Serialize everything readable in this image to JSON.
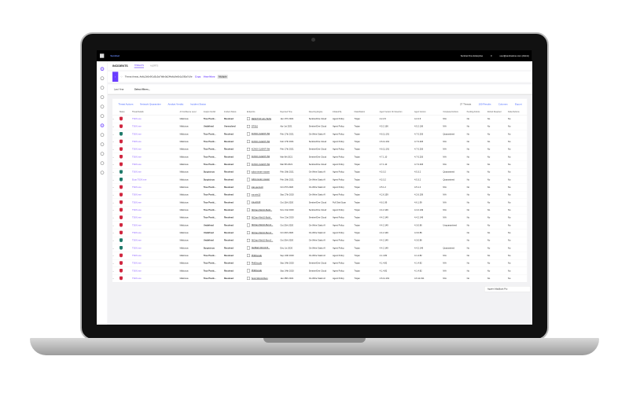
{
  "topbar": {
    "breadcrumb": "Sentinel",
    "scope": "Sentinel One Enterprise",
    "count": "0",
    "user": "user@sentinelone.com (Admin)"
  },
  "tabs": {
    "title": "INCIDENTS",
    "items": [
      "THREATS",
      "ALERTS"
    ],
    "active": "THREATS"
  },
  "banner": {
    "text": "Threat threat_4a6c2b0e9f1d3c5a7b8e0d2f4a6c8e0b1d3f5a7c9e",
    "copy": "Copy",
    "view_more": "View More",
    "tag": "Multiple"
  },
  "filters": {
    "time": "Last Year",
    "select": "Select filters..."
  },
  "actions": {
    "items": [
      "Threat Actions",
      "Network Quarantine",
      "Analyst Verdict",
      "Incident Status"
    ],
    "threat_count": "27 Threats",
    "results": "100 Results",
    "columns": "Columns",
    "export": "Export"
  },
  "colors": {
    "malicious": "#d0263f",
    "suspicious": "#1f7a6a",
    "accent": "#6a3dff"
  },
  "table": {
    "headers": [
      "",
      "Status",
      "Threat Details",
      "AI Confidence Level",
      "Analyst Verdict",
      "Incident Status",
      "Endpoints",
      "Reported Time",
      "Detecting Engine",
      "Initiated By",
      "Classification",
      "Agent Version On Detection",
      "Agent Version",
      "Completed Actions",
      "Pending Actions",
      "Reboot Required",
      "Failed Actions"
    ],
    "rows": [
      [
        "m",
        "TS0X.exe",
        "Malicious",
        "True Positi...",
        "Resolved",
        "DESKTOP-A1U7E7E",
        "Jan 17th 2021",
        "SentinelOne Cloud",
        "Agent Policy",
        "Trojan",
        "4.2.2.6",
        "4.2.2.6",
        "N/A",
        "No",
        "No",
        "No"
      ],
      [
        "m",
        "TS0X.exe",
        "Malicious",
        "Undefined",
        "Unresolved",
        "DTS10",
        "Apr 1st 2021",
        "SentinelOne Cloud",
        "Agent Policy",
        "Trojan",
        "4.5.2.136",
        "4.5.2.136",
        "N/A",
        "No",
        "No",
        "No"
      ],
      [
        "s",
        "TS0X.exe",
        "Malicious",
        "True Positi...",
        "Resolved",
        "KCWO-CLIENT-3W",
        "Feb 17th 2021",
        "On-Write Static AI",
        "Agent Policy",
        "Trojan",
        "4.6.11.191",
        "4.7.0.203",
        "Quarantined",
        "No",
        "No",
        "No"
      ],
      [
        "m",
        "TS0X.exe",
        "Malicious",
        "True Positi...",
        "Resolved",
        "KCWO-CLIENT-3W",
        "Feb 17th 2021",
        "SentinelOne Cloud",
        "Agent Policy",
        "Trojan",
        "4.6.11.191",
        "4.7.0.203",
        "N/A",
        "No",
        "No",
        "No"
      ],
      [
        "m",
        "TS0X.exe",
        "Malicious",
        "True Positi...",
        "Resolved",
        "KCWO-CLIENT-3W",
        "Feb 17th 2021",
        "SentinelOne Cloud",
        "Agent Policy",
        "Trojan",
        "4.6.11.191",
        "4.7.0.203",
        "N/A",
        "No",
        "No",
        "No"
      ],
      [
        "m",
        "TS0X.exe",
        "Malicious",
        "True Positi...",
        "Resolved",
        "KCWO-CLIENT-3W",
        "Mar 8th 2021",
        "SentinelOne Cloud",
        "Agent Policy",
        "Trojan",
        "4.7.1.10",
        "4.7.0.203",
        "N/A",
        "No",
        "No",
        "No"
      ],
      [
        "m",
        "TS0X.exe",
        "Malicious",
        "True Positi...",
        "Resolved",
        "KCWO-CLIENT-3W",
        "Mar 8th 2021",
        "SentinelOne Cloud",
        "Agent Policy",
        "Trojan",
        "4.7.1.10",
        "4.7.0.203",
        "N/A",
        "No",
        "No",
        "No"
      ],
      [
        "s",
        "TS0X.exe",
        "Malicious",
        "Suspicious",
        "Resolved",
        "tutbot-tester-master",
        "Feb 19th 2021",
        "On-Write Static AI",
        "Agent Policy",
        "Trojan",
        "4.5.3.2",
        "4.5.3.2",
        "Quarantined",
        "No",
        "No",
        "No"
      ],
      [
        "s",
        "Eicar.TS0X.exe",
        "Malicious",
        "Suspicious",
        "Resolved",
        "tutbot-tester-master",
        "Feb 19th 2021",
        "On-Write Static AI",
        "Agent Policy",
        "Trojan",
        "4.5.3.2",
        "4.5.3.2",
        "Quarantined",
        "No",
        "No",
        "No"
      ],
      [
        "m",
        "TS0X.exe",
        "Malicious",
        "True Positi...",
        "Resolved",
        "tcat-ga-bun0",
        "Oct 27th 2020",
        "On-Write Static AI",
        "Agent Policy",
        "Trojan",
        "4.5.1.2",
        "4.5.1.2",
        "N/A",
        "No",
        "No",
        "No"
      ],
      [
        "m",
        "TS0X.exe",
        "Malicious",
        "True Positi...",
        "Resolved",
        "ma-win10",
        "Sep 27th 2020",
        "On-Write Static AI",
        "Agent Policy",
        "Trojan",
        "4.2.6.159",
        "4.2.6.159",
        "N/A",
        "No",
        "No",
        "No"
      ],
      [
        "m",
        "TS0X.exe",
        "Malicious",
        "True Positi...",
        "Resolved",
        "ma-win10",
        "Oct 15th 2020",
        "SentinelOne Cloud",
        "Full Disk Scan",
        "Trojan",
        "4.6.1.99",
        "4.6.1.99",
        "N/A",
        "No",
        "No",
        "No"
      ],
      [
        "m",
        "TS0X.exe",
        "Malicious",
        "True Positi...",
        "Resolved",
        "NiChan-Win10-Build...",
        "Nov 21st 2020",
        "SentinelOne Cloud",
        "Agent Policy",
        "Trojan",
        "4.4.2.149",
        "4.4.2.149",
        "N/A",
        "No",
        "No",
        "No"
      ],
      [
        "m",
        "TS0X.exe",
        "Malicious",
        "True Positi...",
        "Resolved",
        "NiChan-Win10-Build...",
        "Nov 21st 2020",
        "SentinelOne Cloud",
        "Agent Policy",
        "Trojan",
        "4.4.2.149",
        "4.4.2.149",
        "N/A",
        "No",
        "No",
        "No"
      ],
      [
        "m",
        "TS0X.exe",
        "Malicious",
        "Undefined",
        "Resolved",
        "NiChan-Win10-Burn2...",
        "Oct 20th 2020",
        "On-Write Static AI",
        "Agent Policy",
        "Trojan",
        "4.4.2.149",
        "4.3.0.86",
        "Unquarantined",
        "No",
        "No",
        "No"
      ],
      [
        "m",
        "TS0X.exe",
        "Malicious",
        "Undefined",
        "Resolved",
        "NiChan-Win10-Burn2...",
        "Oct 20th 2020",
        "On-Write Static AI",
        "Agent Policy",
        "Trojan",
        "4.4.2.149",
        "4.3.0.86",
        "",
        "No",
        "No",
        "No"
      ],
      [
        "s",
        "TS0X.exe",
        "Malicious",
        "Undefined",
        "Resolved",
        "NiChan-Win10-Burn2...",
        "Oct 20th 2020",
        "On-Write Static AI",
        "Agent Policy",
        "Trojan",
        "4.4.2.149",
        "4.3.0.86",
        "",
        "No",
        "No",
        "No"
      ],
      [
        "s",
        "TS0X.exe",
        "Malicious",
        "Suspicious",
        "Resolved",
        "NetMark-Win10-B...",
        "Dec 1st 2020",
        "On-Write Static AI",
        "Agent Policy",
        "Trojan",
        "4.4.2.149",
        "4.4.2.149",
        "Quarantined",
        "No",
        "No",
        "No"
      ],
      [
        "m",
        "TS0X.exe",
        "Malicious",
        "True Positi...",
        "Resolved",
        "PhilDiscafe",
        "Sep 24th 2020",
        "On-Write Static AI",
        "Agent Policy",
        "Trojan",
        "4.1.4.82",
        "4.1.4.82",
        "N/A",
        "No",
        "No",
        "No"
      ],
      [
        "m",
        "TS0X.exe",
        "Malicious",
        "True Positi...",
        "Resolved",
        "PhilDiscafe",
        "Sep 24th 2020",
        "SentinelOne Cloud",
        "Agent Policy",
        "Trojan",
        "4.1.4.82",
        "4.1.4.82",
        "N/A",
        "No",
        "No",
        "No"
      ],
      [
        "m",
        "TS0X.exe",
        "Malicious",
        "True Positi...",
        "Resolved",
        "PhilDiscafe",
        "Sep 24th 2020",
        "SentinelOne Cloud",
        "Agent Policy",
        "Trojan",
        "4.1.4.82",
        "4.1.4.82",
        "N/A",
        "No",
        "No",
        "No"
      ],
      [
        "m",
        "TS0X.exe",
        "Malicious",
        "True Positi...",
        "Resolved",
        "Scott-Win10-Burn",
        "Jan 28th 2021",
        "On-Write Static AI",
        "Agent Policy",
        "Trojan",
        "4.6.11.191",
        "4.6.11.191",
        "N/A",
        "No",
        "No",
        "No"
      ]
    ]
  },
  "tooltip": "Apple's MacBook Pro"
}
